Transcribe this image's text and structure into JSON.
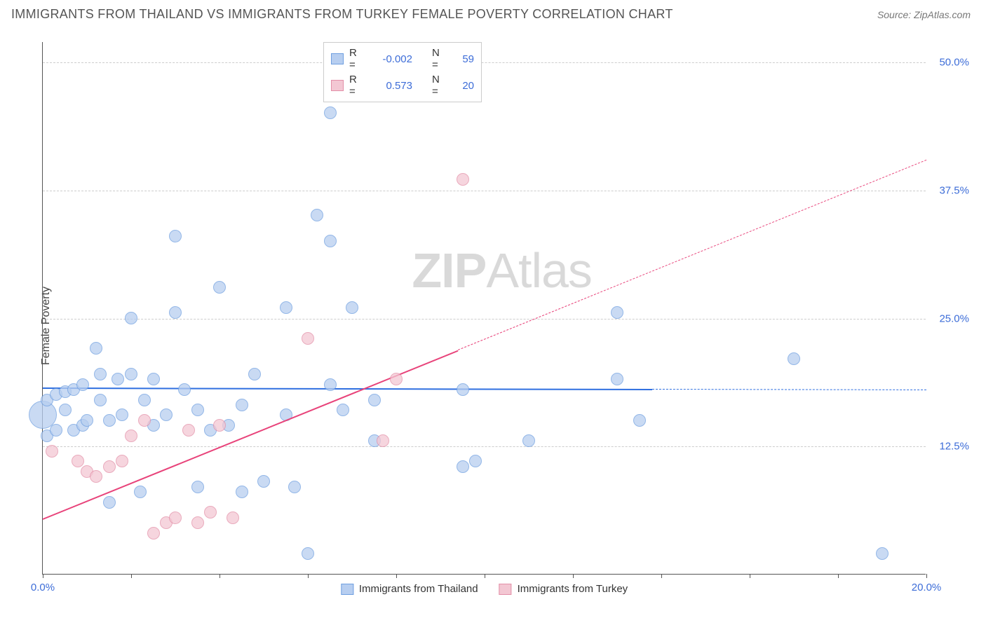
{
  "header": {
    "title": "IMMIGRANTS FROM THAILAND VS IMMIGRANTS FROM TURKEY FEMALE POVERTY CORRELATION CHART",
    "source_prefix": "Source: ",
    "source_name": "ZipAtlas.com"
  },
  "watermark": {
    "prefix": "ZIP",
    "suffix": "Atlas"
  },
  "chart": {
    "type": "scatter",
    "ylabel": "Female Poverty",
    "background_color": "#ffffff",
    "plot_border_color": "#555555",
    "grid_color": "#cccccc",
    "xlim": [
      0,
      20
    ],
    "ylim": [
      0,
      52
    ],
    "x_ticks": [
      0,
      2,
      4,
      6,
      8,
      10,
      12,
      14,
      16,
      18,
      20
    ],
    "x_tick_labels": {
      "0": "0.0%",
      "20": "20.0%"
    },
    "y_gridlines": [
      12.5,
      25,
      37.5,
      50
    ],
    "y_tick_labels": {
      "12.5": "12.5%",
      "25": "25.0%",
      "37.5": "37.5%",
      "50": "50.0%"
    },
    "axis_label_color": "#3d6dd8",
    "series": [
      {
        "id": "thailand",
        "name": "Immigrants from Thailand",
        "marker_fill": "#b7cef0",
        "marker_stroke": "#6f9fe0",
        "marker_opacity": 0.75,
        "trend_color": "#2f6fe0",
        "trend_solid_range": [
          0,
          13.8
        ],
        "trend_dash_range": [
          13.8,
          20
        ],
        "trend": {
          "slope": -0.01,
          "intercept": 18.3
        },
        "stats": {
          "R": "-0.002",
          "N": "59"
        },
        "default_r": 9,
        "points": [
          {
            "x": 0.0,
            "y": 15.5,
            "r": 20
          },
          {
            "x": 0.1,
            "y": 17.0
          },
          {
            "x": 0.1,
            "y": 13.5
          },
          {
            "x": 0.3,
            "y": 14.0
          },
          {
            "x": 0.3,
            "y": 17.5
          },
          {
            "x": 0.5,
            "y": 16.0
          },
          {
            "x": 0.5,
            "y": 17.8
          },
          {
            "x": 0.7,
            "y": 18.0
          },
          {
            "x": 0.7,
            "y": 14.0
          },
          {
            "x": 0.9,
            "y": 14.5
          },
          {
            "x": 0.9,
            "y": 18.5
          },
          {
            "x": 1.0,
            "y": 15.0
          },
          {
            "x": 1.2,
            "y": 22.0
          },
          {
            "x": 1.3,
            "y": 17.0
          },
          {
            "x": 1.3,
            "y": 19.5
          },
          {
            "x": 1.5,
            "y": 7.0
          },
          {
            "x": 1.5,
            "y": 15.0
          },
          {
            "x": 1.7,
            "y": 19.0
          },
          {
            "x": 1.8,
            "y": 15.5
          },
          {
            "x": 2.0,
            "y": 25.0
          },
          {
            "x": 2.0,
            "y": 19.5
          },
          {
            "x": 2.2,
            "y": 8.0
          },
          {
            "x": 2.3,
            "y": 17.0
          },
          {
            "x": 2.5,
            "y": 14.5
          },
          {
            "x": 2.5,
            "y": 19.0
          },
          {
            "x": 2.8,
            "y": 15.5
          },
          {
            "x": 3.0,
            "y": 33.0
          },
          {
            "x": 3.0,
            "y": 25.5
          },
          {
            "x": 3.2,
            "y": 18.0
          },
          {
            "x": 3.5,
            "y": 16.0
          },
          {
            "x": 3.5,
            "y": 8.5
          },
          {
            "x": 3.8,
            "y": 14.0
          },
          {
            "x": 4.0,
            "y": 28.0
          },
          {
            "x": 4.2,
            "y": 14.5
          },
          {
            "x": 4.5,
            "y": 16.5
          },
          {
            "x": 4.5,
            "y": 8.0
          },
          {
            "x": 4.8,
            "y": 19.5
          },
          {
            "x": 5.0,
            "y": 9.0
          },
          {
            "x": 5.5,
            "y": 26.0
          },
          {
            "x": 5.5,
            "y": 15.5
          },
          {
            "x": 5.7,
            "y": 8.5
          },
          {
            "x": 6.0,
            "y": 2.0
          },
          {
            "x": 6.2,
            "y": 35.0
          },
          {
            "x": 6.5,
            "y": 45.0
          },
          {
            "x": 6.5,
            "y": 18.5
          },
          {
            "x": 6.5,
            "y": 32.5
          },
          {
            "x": 6.8,
            "y": 16.0
          },
          {
            "x": 7.0,
            "y": 26.0
          },
          {
            "x": 7.5,
            "y": 13.0
          },
          {
            "x": 7.5,
            "y": 17.0
          },
          {
            "x": 9.5,
            "y": 18.0
          },
          {
            "x": 9.8,
            "y": 11.0
          },
          {
            "x": 9.5,
            "y": 10.5
          },
          {
            "x": 11.0,
            "y": 13.0
          },
          {
            "x": 13.0,
            "y": 25.5
          },
          {
            "x": 13.5,
            "y": 15.0
          },
          {
            "x": 13.0,
            "y": 19.0
          },
          {
            "x": 17.0,
            "y": 21.0
          },
          {
            "x": 19.0,
            "y": 2.0
          }
        ]
      },
      {
        "id": "turkey",
        "name": "Immigrants from Turkey",
        "marker_fill": "#f3c7d3",
        "marker_stroke": "#e38fa8",
        "marker_opacity": 0.75,
        "trend_color": "#e8437a",
        "trend_solid_range": [
          0,
          9.4
        ],
        "trend_dash_range": [
          9.4,
          20
        ],
        "trend": {
          "slope": 1.75,
          "intercept": 5.5
        },
        "stats": {
          "R": "0.573",
          "N": "20"
        },
        "default_r": 9,
        "points": [
          {
            "x": 0.2,
            "y": 12.0
          },
          {
            "x": 0.8,
            "y": 11.0
          },
          {
            "x": 1.0,
            "y": 10.0
          },
          {
            "x": 1.2,
            "y": 9.5
          },
          {
            "x": 1.5,
            "y": 10.5
          },
          {
            "x": 1.8,
            "y": 11.0
          },
          {
            "x": 2.0,
            "y": 13.5
          },
          {
            "x": 2.3,
            "y": 15.0
          },
          {
            "x": 2.5,
            "y": 4.0
          },
          {
            "x": 2.8,
            "y": 5.0
          },
          {
            "x": 3.0,
            "y": 5.5
          },
          {
            "x": 3.3,
            "y": 14.0
          },
          {
            "x": 3.5,
            "y": 5.0
          },
          {
            "x": 3.8,
            "y": 6.0
          },
          {
            "x": 4.0,
            "y": 14.5
          },
          {
            "x": 4.3,
            "y": 5.5
          },
          {
            "x": 6.0,
            "y": 23.0
          },
          {
            "x": 7.7,
            "y": 13.0
          },
          {
            "x": 8.0,
            "y": 19.0
          },
          {
            "x": 9.5,
            "y": 38.5
          }
        ]
      }
    ],
    "legend_top": {
      "border_color": "#cccccc",
      "rows": [
        {
          "series": "thailand"
        },
        {
          "series": "turkey"
        }
      ],
      "labels": {
        "R": "R =",
        "N": "N ="
      }
    }
  }
}
